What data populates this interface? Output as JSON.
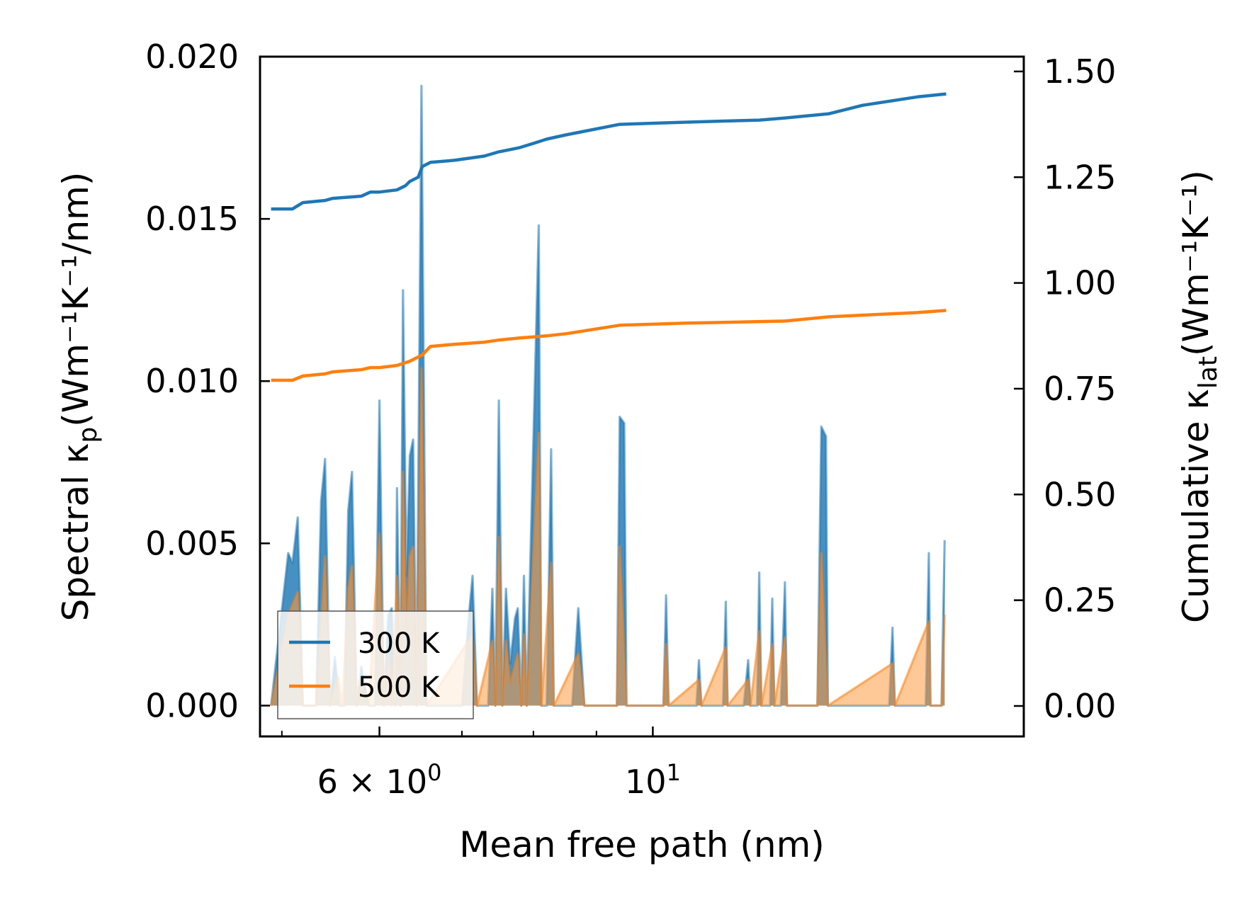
{
  "chart_data": {
    "type": "line",
    "xscale": "log",
    "xlabel": "Mean free path (nm)",
    "ylabel_left": {
      "prefix": "Spectral κ",
      "sub": "p",
      "units": "(Wm⁻¹K⁻¹/nm)"
    },
    "ylabel_right": {
      "prefix": "Cumulative κ",
      "sub": "lat",
      "units": "(Wm⁻¹K⁻¹)"
    },
    "xlim": [
      4.8,
      20.0
    ],
    "ylim_left": [
      -0.00095,
      0.02
    ],
    "ylim_right": [
      -0.072,
      1.535
    ],
    "x_ticks": [
      {
        "value": 6,
        "mantissa": "6 × 10",
        "exp": "0"
      },
      {
        "value": 10,
        "mantissa": "10",
        "exp": "1"
      }
    ],
    "y_left_ticks": [
      {
        "value": 0.0,
        "label": "0.000"
      },
      {
        "value": 0.005,
        "label": "0.005"
      },
      {
        "value": 0.01,
        "label": "0.010"
      },
      {
        "value": 0.015,
        "label": "0.015"
      },
      {
        "value": 0.02,
        "label": "0.020"
      }
    ],
    "y_right_ticks": [
      {
        "value": 0.0,
        "label": "0.00"
      },
      {
        "value": 0.25,
        "label": "0.25"
      },
      {
        "value": 0.5,
        "label": "0.50"
      },
      {
        "value": 0.75,
        "label": "0.75"
      },
      {
        "value": 1.0,
        "label": "1.00"
      },
      {
        "value": 1.25,
        "label": "1.25"
      },
      {
        "value": 1.5,
        "label": "1.50"
      }
    ],
    "legend": {
      "position": "lower-left",
      "entries": [
        "300 K",
        "500 K"
      ]
    },
    "series": [
      {
        "name": "300 K",
        "color": "#1f77b4",
        "fill": "#1f77b4",
        "spectral": [
          [
            4.9,
            0.0
          ],
          [
            5.06,
            0.0047
          ],
          [
            5.1,
            0.0044
          ],
          [
            5.15,
            0.0058
          ],
          [
            5.2,
            0.0
          ],
          [
            5.33,
            0.0
          ],
          [
            5.38,
            0.0063
          ],
          [
            5.42,
            0.0076
          ],
          [
            5.47,
            0.0
          ],
          [
            5.52,
            0.0015
          ],
          [
            5.57,
            0.0
          ],
          [
            5.62,
            0.0
          ],
          [
            5.66,
            0.006
          ],
          [
            5.7,
            0.0072
          ],
          [
            5.75,
            0.0
          ],
          [
            5.8,
            0.0012
          ],
          [
            5.88,
            0.0
          ],
          [
            5.95,
            0.0
          ],
          [
            6.0,
            0.0094
          ],
          [
            6.05,
            0.0
          ],
          [
            6.1,
            0.0028
          ],
          [
            6.14,
            0.003
          ],
          [
            6.18,
            0.0
          ],
          [
            6.2,
            0.0067
          ],
          [
            6.24,
            0.0
          ],
          [
            6.27,
            0.0128
          ],
          [
            6.31,
            0.004
          ],
          [
            6.35,
            0.0077
          ],
          [
            6.39,
            0.0082
          ],
          [
            6.43,
            0.0
          ],
          [
            6.49,
            0.0191
          ],
          [
            6.55,
            0.0
          ],
          [
            6.6,
            0.0
          ],
          [
            6.8,
            0.0
          ],
          [
            6.9,
            0.0
          ],
          [
            7.0,
            0.0
          ],
          [
            7.08,
            0.0025
          ],
          [
            7.14,
            0.004
          ],
          [
            7.2,
            0.0
          ],
          [
            7.35,
            0.0
          ],
          [
            7.41,
            0.0036
          ],
          [
            7.45,
            0.0
          ],
          [
            7.5,
            0.0094
          ],
          [
            7.55,
            0.0
          ],
          [
            7.6,
            0.0036
          ],
          [
            7.66,
            0.0013
          ],
          [
            7.73,
            0.0027
          ],
          [
            7.77,
            0.003
          ],
          [
            7.82,
            0.0
          ],
          [
            7.86,
            0.004
          ],
          [
            7.9,
            0.0
          ],
          [
            8.08,
            0.0148
          ],
          [
            8.12,
            0.0
          ],
          [
            8.2,
            0.0
          ],
          [
            8.27,
            0.0079
          ],
          [
            8.31,
            0.0
          ],
          [
            8.6,
            0.0
          ],
          [
            8.7,
            0.003
          ],
          [
            8.8,
            0.0
          ],
          [
            9.35,
            0.0
          ],
          [
            9.4,
            0.0089
          ],
          [
            9.48,
            0.0087
          ],
          [
            9.52,
            0.0
          ],
          [
            10.2,
            0.0
          ],
          [
            10.25,
            0.0034
          ],
          [
            10.3,
            0.0
          ],
          [
            10.85,
            0.0
          ],
          [
            10.9,
            0.0014
          ],
          [
            10.95,
            0.0
          ],
          [
            11.4,
            0.0
          ],
          [
            11.46,
            0.0032
          ],
          [
            11.5,
            0.0
          ],
          [
            11.85,
            0.0
          ],
          [
            11.95,
            0.0014
          ],
          [
            12.0,
            0.0
          ],
          [
            12.15,
            0.0
          ],
          [
            12.2,
            0.0041
          ],
          [
            12.25,
            0.0
          ],
          [
            12.45,
            0.0
          ],
          [
            12.5,
            0.0033
          ],
          [
            12.55,
            0.0
          ],
          [
            12.7,
            0.0
          ],
          [
            12.8,
            0.0038
          ],
          [
            12.85,
            0.0
          ],
          [
            13.6,
            0.0
          ],
          [
            13.7,
            0.0086
          ],
          [
            13.82,
            0.0083
          ],
          [
            13.87,
            0.0
          ],
          [
            15.55,
            0.0
          ],
          [
            15.65,
            0.0024
          ],
          [
            15.72,
            0.0
          ],
          [
            16.65,
            0.0
          ],
          [
            16.75,
            0.0047
          ],
          [
            16.8,
            0.0
          ],
          [
            17.15,
            0.0
          ],
          [
            17.25,
            0.0051
          ]
        ],
        "cumulative": [
          [
            4.9,
            1.175
          ],
          [
            5.1,
            1.175
          ],
          [
            5.2,
            1.19
          ],
          [
            5.42,
            1.195
          ],
          [
            5.5,
            1.2
          ],
          [
            5.8,
            1.205
          ],
          [
            5.9,
            1.215
          ],
          [
            6.0,
            1.215
          ],
          [
            6.2,
            1.22
          ],
          [
            6.3,
            1.23
          ],
          [
            6.35,
            1.24
          ],
          [
            6.45,
            1.25
          ],
          [
            6.5,
            1.275
          ],
          [
            6.6,
            1.285
          ],
          [
            6.9,
            1.29
          ],
          [
            7.1,
            1.295
          ],
          [
            7.3,
            1.3
          ],
          [
            7.5,
            1.31
          ],
          [
            7.65,
            1.315
          ],
          [
            7.8,
            1.32
          ],
          [
            8.0,
            1.33
          ],
          [
            8.2,
            1.34
          ],
          [
            8.5,
            1.35
          ],
          [
            9.4,
            1.375
          ],
          [
            10.6,
            1.38
          ],
          [
            12.2,
            1.385
          ],
          [
            12.8,
            1.39
          ],
          [
            13.9,
            1.4
          ],
          [
            14.8,
            1.42
          ],
          [
            16.4,
            1.44
          ],
          [
            17.3,
            1.447
          ]
        ]
      },
      {
        "name": "500 K",
        "color": "#ff7f0e",
        "fill": "#ff9a40",
        "spectral": [
          [
            4.9,
            0.0
          ],
          [
            5.06,
            0.0028
          ],
          [
            5.15,
            0.0035
          ],
          [
            5.2,
            0.0
          ],
          [
            5.33,
            0.0
          ],
          [
            5.42,
            0.0046
          ],
          [
            5.47,
            0.0
          ],
          [
            5.55,
            0.0009
          ],
          [
            5.6,
            0.0
          ],
          [
            5.66,
            0.0036
          ],
          [
            5.7,
            0.0043
          ],
          [
            5.75,
            0.0
          ],
          [
            5.8,
            0.0008
          ],
          [
            5.88,
            0.0
          ],
          [
            6.0,
            0.0053
          ],
          [
            6.05,
            0.0
          ],
          [
            6.1,
            0.0017
          ],
          [
            6.14,
            0.0
          ],
          [
            6.2,
            0.004
          ],
          [
            6.24,
            0.0
          ],
          [
            6.27,
            0.0072
          ],
          [
            6.31,
            0.0023
          ],
          [
            6.35,
            0.0046
          ],
          [
            6.39,
            0.0049
          ],
          [
            6.43,
            0.0
          ],
          [
            6.49,
            0.0104
          ],
          [
            6.55,
            0.0
          ],
          [
            7.14,
            0.0022
          ],
          [
            7.2,
            0.0
          ],
          [
            7.41,
            0.002
          ],
          [
            7.45,
            0.0
          ],
          [
            7.5,
            0.0052
          ],
          [
            7.55,
            0.0
          ],
          [
            7.6,
            0.002
          ],
          [
            7.66,
            0.0007
          ],
          [
            7.77,
            0.0016
          ],
          [
            7.82,
            0.0
          ],
          [
            7.86,
            0.0022
          ],
          [
            7.9,
            0.0
          ],
          [
            8.08,
            0.0084
          ],
          [
            8.12,
            0.0
          ],
          [
            8.27,
            0.0044
          ],
          [
            8.31,
            0.0
          ],
          [
            8.7,
            0.0016
          ],
          [
            8.8,
            0.0
          ],
          [
            9.35,
            0.0
          ],
          [
            9.4,
            0.0049
          ],
          [
            9.52,
            0.0
          ],
          [
            10.2,
            0.0
          ],
          [
            10.25,
            0.0019
          ],
          [
            10.3,
            0.0
          ],
          [
            10.9,
            0.0008
          ],
          [
            10.95,
            0.0
          ],
          [
            11.46,
            0.0018
          ],
          [
            11.5,
            0.0
          ],
          [
            11.95,
            0.0008
          ],
          [
            12.0,
            0.0
          ],
          [
            12.2,
            0.0023
          ],
          [
            12.25,
            0.0
          ],
          [
            12.5,
            0.0019
          ],
          [
            12.55,
            0.0
          ],
          [
            12.8,
            0.0021
          ],
          [
            12.85,
            0.0
          ],
          [
            13.6,
            0.0
          ],
          [
            13.7,
            0.0047
          ],
          [
            13.87,
            0.0
          ],
          [
            15.65,
            0.0013
          ],
          [
            15.72,
            0.0
          ],
          [
            16.75,
            0.0026
          ],
          [
            16.8,
            0.0
          ],
          [
            17.15,
            0.0
          ],
          [
            17.25,
            0.0028
          ]
        ],
        "cumulative": [
          [
            4.9,
            0.77
          ],
          [
            5.1,
            0.77
          ],
          [
            5.2,
            0.78
          ],
          [
            5.42,
            0.785
          ],
          [
            5.5,
            0.79
          ],
          [
            5.8,
            0.795
          ],
          [
            5.9,
            0.8
          ],
          [
            6.0,
            0.8
          ],
          [
            6.2,
            0.805
          ],
          [
            6.35,
            0.815
          ],
          [
            6.5,
            0.83
          ],
          [
            6.6,
            0.85
          ],
          [
            6.9,
            0.855
          ],
          [
            7.3,
            0.86
          ],
          [
            7.5,
            0.865
          ],
          [
            7.8,
            0.87
          ],
          [
            8.2,
            0.875
          ],
          [
            8.5,
            0.88
          ],
          [
            9.4,
            0.9
          ],
          [
            10.6,
            0.905
          ],
          [
            12.8,
            0.91
          ],
          [
            13.9,
            0.92
          ],
          [
            16.4,
            0.93
          ],
          [
            17.3,
            0.935
          ]
        ]
      }
    ]
  }
}
